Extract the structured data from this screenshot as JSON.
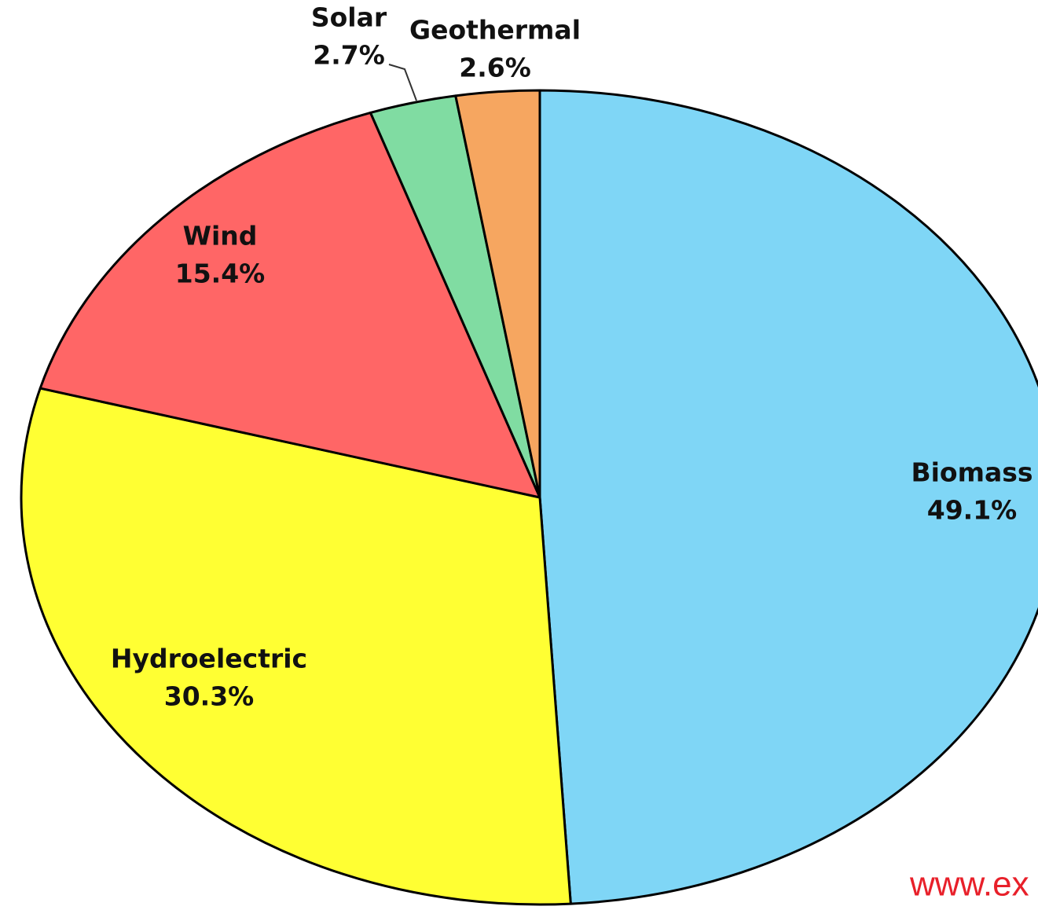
{
  "chart_data": {
    "type": "pie",
    "categories": [
      "Biomass",
      "Hydroelectric",
      "Wind",
      "Solar",
      "Geothermal"
    ],
    "values": [
      49.1,
      30.3,
      15.4,
      2.7,
      2.6
    ],
    "value_labels": [
      "49.1%",
      "30.3%",
      "15.4%",
      "2.7%",
      "2.6%"
    ],
    "colors": [
      "#7fd6f6",
      "#ffff33",
      "#ff6666",
      "#80dca2",
      "#f6a660"
    ],
    "start": "top",
    "direction": "clockwise",
    "watermark": "www.ex"
  }
}
